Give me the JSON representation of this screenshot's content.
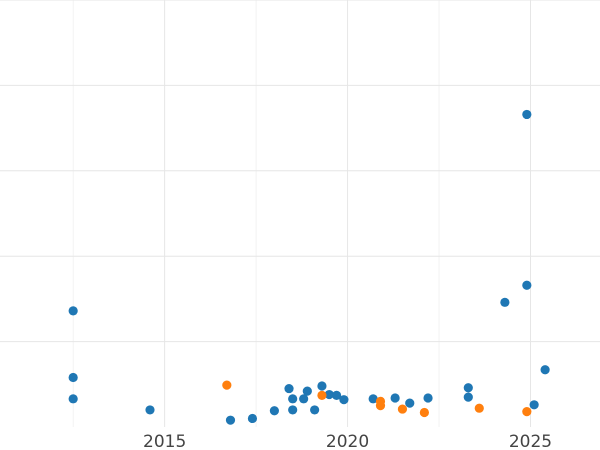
{
  "chart_data": {
    "type": "scatter",
    "title": "",
    "xlabel": "",
    "ylabel": "",
    "xlim": [
      2010.5,
      2026.9
    ],
    "ylim": [
      0,
      5
    ],
    "grid": true,
    "x_ticks": [
      2015,
      2020,
      2025
    ],
    "x_tick_labels": [
      "2015",
      "2020",
      "2025"
    ],
    "y_grid": [
      1,
      2,
      3,
      4,
      5
    ],
    "x_minor_grid": [
      2012.5,
      2017.5,
      2022.5
    ],
    "series": [
      {
        "color": "#1f77b4",
        "points": [
          {
            "x": 2012.5,
            "y": 1.36
          },
          {
            "x": 2012.5,
            "y": 0.58
          },
          {
            "x": 2012.5,
            "y": 0.33
          },
          {
            "x": 2014.6,
            "y": 0.2
          },
          {
            "x": 2016.8,
            "y": 0.08
          },
          {
            "x": 2017.4,
            "y": 0.1
          },
          {
            "x": 2018.0,
            "y": 0.19
          },
          {
            "x": 2018.4,
            "y": 0.45
          },
          {
            "x": 2018.5,
            "y": 0.33
          },
          {
            "x": 2018.5,
            "y": 0.2
          },
          {
            "x": 2018.8,
            "y": 0.33
          },
          {
            "x": 2018.9,
            "y": 0.42
          },
          {
            "x": 2019.1,
            "y": 0.2
          },
          {
            "x": 2019.3,
            "y": 0.48
          },
          {
            "x": 2019.5,
            "y": 0.38
          },
          {
            "x": 2019.7,
            "y": 0.37
          },
          {
            "x": 2019.9,
            "y": 0.32
          },
          {
            "x": 2020.7,
            "y": 0.33
          },
          {
            "x": 2021.3,
            "y": 0.34
          },
          {
            "x": 2021.7,
            "y": 0.28
          },
          {
            "x": 2022.2,
            "y": 0.34
          },
          {
            "x": 2023.3,
            "y": 0.46
          },
          {
            "x": 2023.3,
            "y": 0.35
          },
          {
            "x": 2024.3,
            "y": 1.46
          },
          {
            "x": 2024.9,
            "y": 1.66
          },
          {
            "x": 2024.9,
            "y": 3.66
          },
          {
            "x": 2025.1,
            "y": 0.26
          },
          {
            "x": 2025.4,
            "y": 0.67
          }
        ]
      },
      {
        "color": "#ff7f0e",
        "points": [
          {
            "x": 2016.7,
            "y": 0.49
          },
          {
            "x": 2019.3,
            "y": 0.37
          },
          {
            "x": 2020.9,
            "y": 0.3
          },
          {
            "x": 2020.9,
            "y": 0.25
          },
          {
            "x": 2021.5,
            "y": 0.21
          },
          {
            "x": 2022.1,
            "y": 0.17
          },
          {
            "x": 2023.6,
            "y": 0.22
          },
          {
            "x": 2024.9,
            "y": 0.18
          }
        ]
      }
    ]
  }
}
